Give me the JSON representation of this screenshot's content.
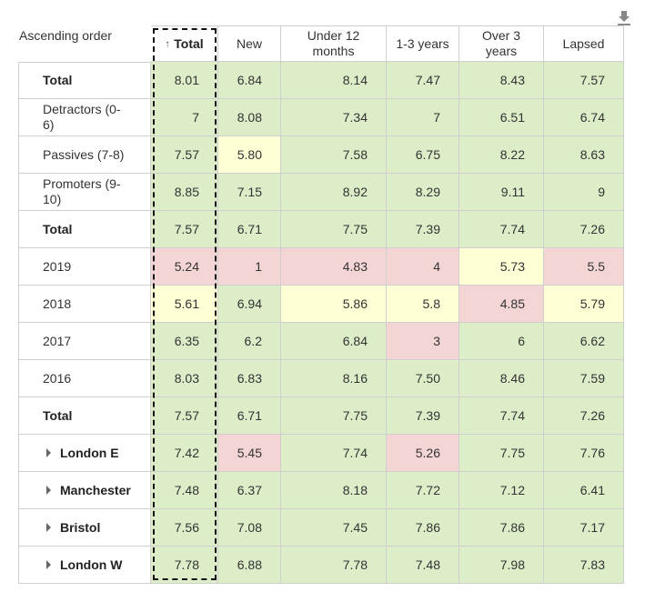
{
  "toolbar": {
    "sort_label": "Ascending order"
  },
  "table": {
    "columns": [
      "Total",
      "New",
      "Under 12 months",
      "1-3 years",
      "Over 3 years",
      "Lapsed"
    ],
    "sorted_column": 0,
    "rows": [
      {
        "label": "Total",
        "bold": true,
        "expandable": false,
        "cells": [
          "8.01",
          "6.84",
          "8.14",
          "7.47",
          "8.43",
          "7.57"
        ],
        "fills": [
          "#dcedc8",
          "#dcedc8",
          "#dcedc8",
          "#dcedc8",
          "#dcedc8",
          "#dcedc8"
        ]
      },
      {
        "label": "Detractors (0-6)",
        "bold": false,
        "expandable": false,
        "cells": [
          "7",
          "8.08",
          "7.34",
          "7",
          "6.51",
          "6.74"
        ],
        "fills": [
          "#dcedc8",
          "#dcedc8",
          "#dcedc8",
          "#dcedc8",
          "#dcedc8",
          "#dcedc8"
        ]
      },
      {
        "label": "Passives (7-8)",
        "bold": false,
        "expandable": false,
        "cells": [
          "7.57",
          "5.80",
          "7.58",
          "6.75",
          "8.22",
          "8.63"
        ],
        "fills": [
          "#dcedc8",
          "#ffffd6",
          "#dcedc8",
          "#dcedc8",
          "#dcedc8",
          "#dcedc8"
        ]
      },
      {
        "label": "Promoters (9-10)",
        "bold": false,
        "expandable": false,
        "cells": [
          "8.85",
          "7.15",
          "8.92",
          "8.29",
          "9.11",
          "9"
        ],
        "fills": [
          "#dcedc8",
          "#dcedc8",
          "#dcedc8",
          "#dcedc8",
          "#dcedc8",
          "#dcedc8"
        ]
      },
      {
        "label": "Total",
        "bold": true,
        "expandable": false,
        "cells": [
          "7.57",
          "6.71",
          "7.75",
          "7.39",
          "7.74",
          "7.26"
        ],
        "fills": [
          "#dcedc8",
          "#dcedc8",
          "#dcedc8",
          "#dcedc8",
          "#dcedc8",
          "#dcedc8"
        ]
      },
      {
        "label": "2019",
        "bold": false,
        "expandable": false,
        "cells": [
          "5.24",
          "1",
          "4.83",
          "4",
          "5.73",
          "5.5"
        ],
        "fills": [
          "#f4d5d5",
          "#f4d5d5",
          "#f4d5d5",
          "#f4d5d5",
          "#ffffd6",
          "#f4d5d5"
        ]
      },
      {
        "label": "2018",
        "bold": false,
        "expandable": false,
        "cells": [
          "5.61",
          "6.94",
          "5.86",
          "5.8",
          "4.85",
          "5.79"
        ],
        "fills": [
          "#ffffd6",
          "#dcedc8",
          "#ffffd6",
          "#ffffd6",
          "#f4d5d5",
          "#ffffd6"
        ]
      },
      {
        "label": "2017",
        "bold": false,
        "expandable": false,
        "cells": [
          "6.35",
          "6.2",
          "6.84",
          "3",
          "6",
          "6.62"
        ],
        "fills": [
          "#dcedc8",
          "#dcedc8",
          "#dcedc8",
          "#f4d5d5",
          "#dcedc8",
          "#dcedc8"
        ]
      },
      {
        "label": "2016",
        "bold": false,
        "expandable": false,
        "cells": [
          "8.03",
          "6.83",
          "8.16",
          "7.50",
          "8.46",
          "7.59"
        ],
        "fills": [
          "#dcedc8",
          "#dcedc8",
          "#dcedc8",
          "#dcedc8",
          "#dcedc8",
          "#dcedc8"
        ]
      },
      {
        "label": "Total",
        "bold": true,
        "expandable": false,
        "cells": [
          "7.57",
          "6.71",
          "7.75",
          "7.39",
          "7.74",
          "7.26"
        ],
        "fills": [
          "#dcedc8",
          "#dcedc8",
          "#dcedc8",
          "#dcedc8",
          "#dcedc8",
          "#dcedc8"
        ]
      },
      {
        "label": "London E",
        "bold": true,
        "expandable": true,
        "cells": [
          "7.42",
          "5.45",
          "7.74",
          "5.26",
          "7.75",
          "7.76"
        ],
        "fills": [
          "#dcedc8",
          "#f4d5d5",
          "#dcedc8",
          "#f4d5d5",
          "#dcedc8",
          "#dcedc8"
        ]
      },
      {
        "label": "Manchester",
        "bold": true,
        "expandable": true,
        "cells": [
          "7.48",
          "6.37",
          "8.18",
          "7.72",
          "7.12",
          "6.41"
        ],
        "fills": [
          "#dcedc8",
          "#dcedc8",
          "#dcedc8",
          "#dcedc8",
          "#dcedc8",
          "#dcedc8"
        ]
      },
      {
        "label": "Bristol",
        "bold": true,
        "expandable": true,
        "cells": [
          "7.56",
          "7.08",
          "7.45",
          "7.86",
          "7.86",
          "7.17"
        ],
        "fills": [
          "#dcedc8",
          "#dcedc8",
          "#dcedc8",
          "#dcedc8",
          "#dcedc8",
          "#dcedc8"
        ]
      },
      {
        "label": "London W",
        "bold": true,
        "expandable": true,
        "cells": [
          "7.78",
          "6.88",
          "7.78",
          "7.48",
          "7.98",
          "7.83"
        ],
        "fills": [
          "#dcedc8",
          "#dcedc8",
          "#dcedc8",
          "#dcedc8",
          "#dcedc8",
          "#dcedc8"
        ]
      }
    ]
  }
}
